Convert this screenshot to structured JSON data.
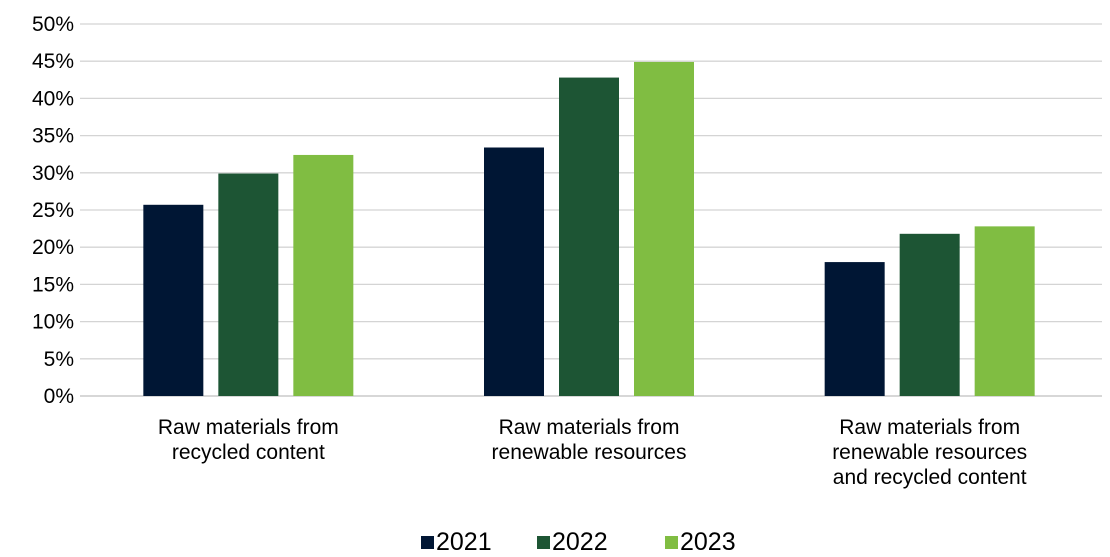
{
  "chart_data": {
    "type": "bar",
    "categories": [
      [
        "Raw materials from",
        "recycled content"
      ],
      [
        "Raw materials from",
        "renewable resources"
      ],
      [
        "Raw materials from",
        "renewable resources",
        "and recycled content"
      ]
    ],
    "series": [
      {
        "name": "2021",
        "color": "#001634",
        "values": [
          25.7,
          33.4,
          18.0
        ]
      },
      {
        "name": "2022",
        "color": "#1d5534",
        "values": [
          29.9,
          42.8,
          21.8
        ]
      },
      {
        "name": "2023",
        "color": "#80bd42",
        "values": [
          32.4,
          44.9,
          22.8
        ]
      }
    ],
    "ylim": [
      0,
      50
    ],
    "yticks": [
      "0%",
      "5%",
      "10%",
      "15%",
      "20%",
      "25%",
      "30%",
      "35%",
      "40%",
      "45%",
      "50%"
    ],
    "ytick_values": [
      0,
      5,
      10,
      15,
      20,
      25,
      30,
      35,
      40,
      45,
      50
    ],
    "grid": true,
    "legend_position": "bottom-center"
  }
}
